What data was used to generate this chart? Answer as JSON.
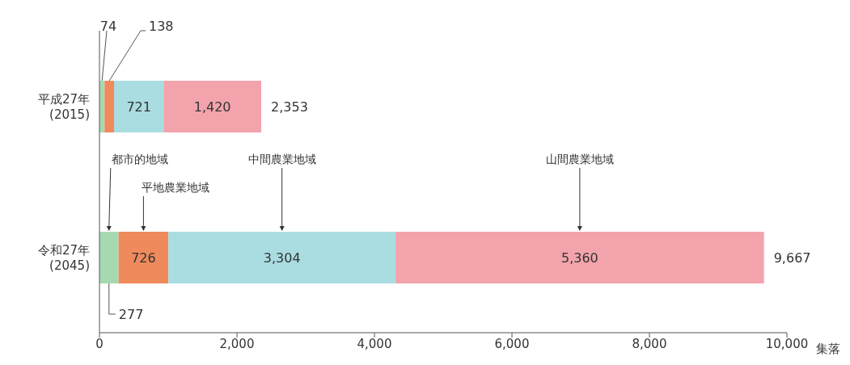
{
  "chart_data": {
    "type": "bar",
    "orientation": "horizontal",
    "stacked": true,
    "xlabel": "集落",
    "categories": [
      "平成27年 (2015)",
      "令和27年 (2045)"
    ],
    "series": [
      {
        "name": "都市的地域",
        "color": "#a6d9b2",
        "values": [
          74,
          277
        ],
        "value_labels": [
          "74",
          "277"
        ]
      },
      {
        "name": "平地農業地域",
        "color": "#ef8a5c",
        "values": [
          138,
          726
        ],
        "value_labels": [
          "138",
          "726"
        ]
      },
      {
        "name": "中間農業地域",
        "color": "#a9dde2",
        "values": [
          721,
          3304
        ],
        "value_labels": [
          "721",
          "3,304"
        ]
      },
      {
        "name": "山間農業地域",
        "color": "#f3a3ac",
        "values": [
          1420,
          5360
        ],
        "value_labels": [
          "1,420",
          "5,360"
        ]
      }
    ],
    "totals": [
      "2,353",
      "9,667"
    ],
    "xlim": [
      0,
      10000
    ],
    "xticks": [
      0,
      {
        "value": 2000,
        "label": "2,000"
      },
      {
        "value": 4000,
        "label": "4,000"
      },
      {
        "value": 6000,
        "label": "6,000"
      },
      {
        "value": 8000,
        "label": "8,000"
      },
      {
        "value": 10000,
        "label": "10,000"
      }
    ],
    "grid": false,
    "legend": false
  }
}
